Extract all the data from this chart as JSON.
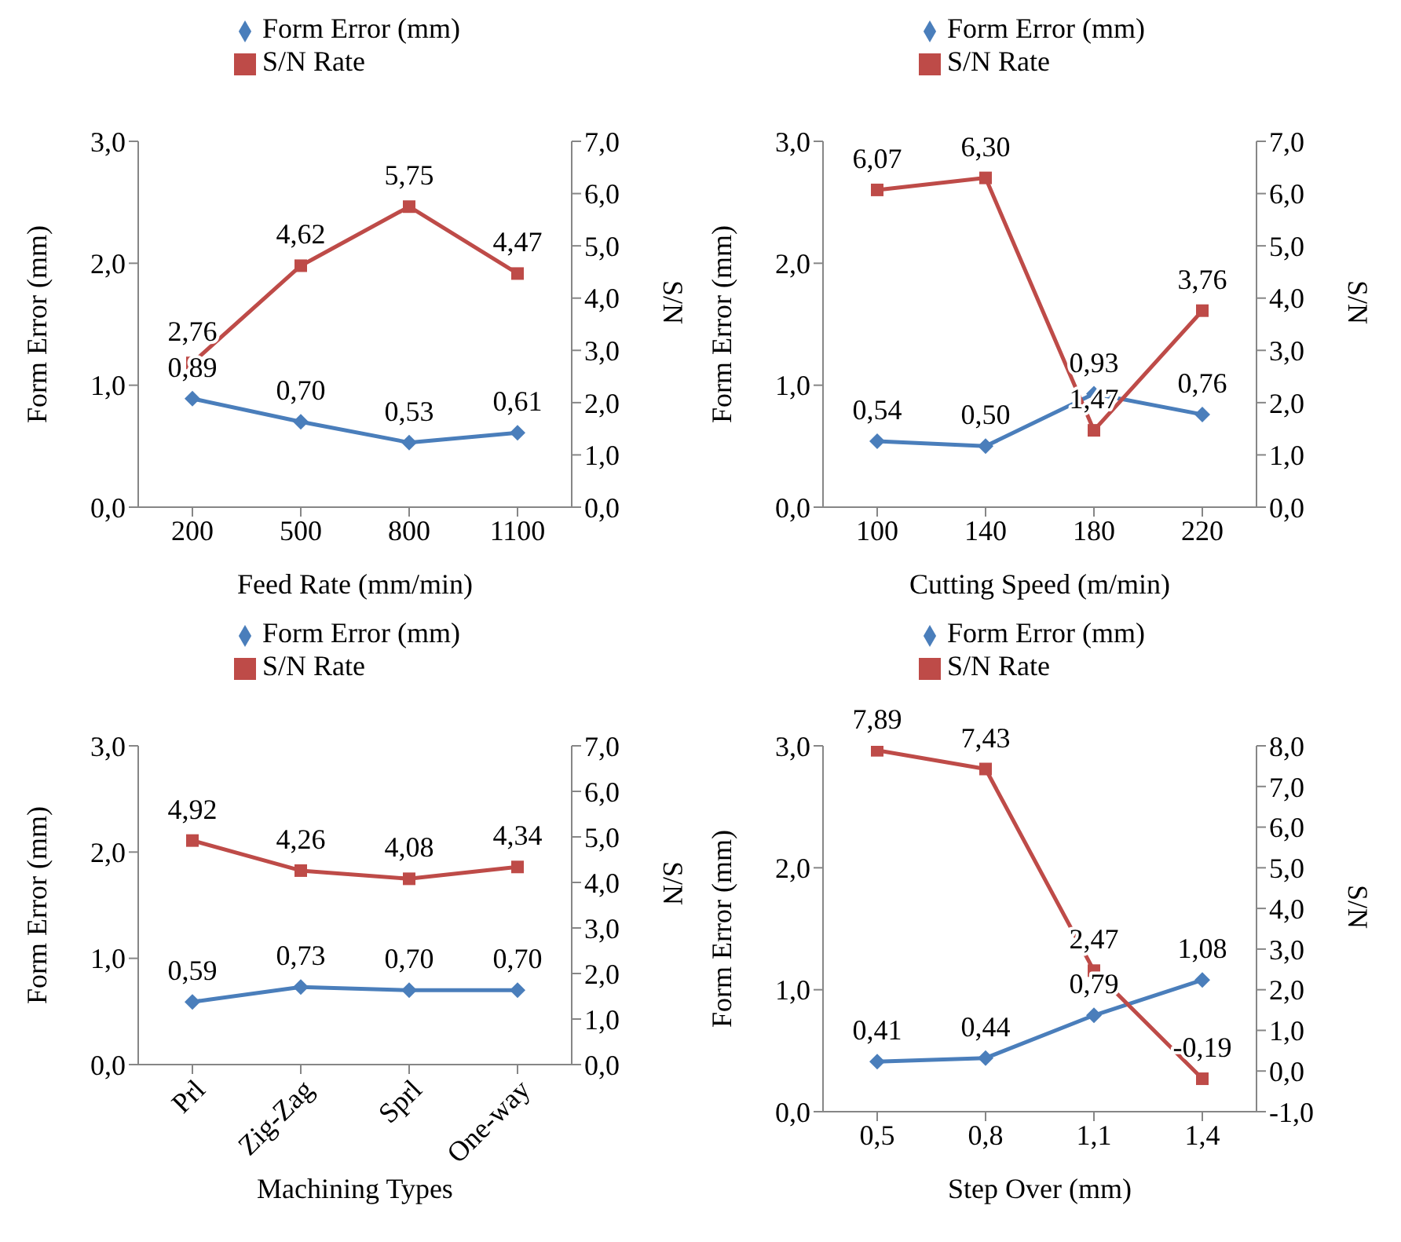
{
  "chart_data": [
    {
      "type": "line",
      "xlabel": "Feed Rate (mm/min)",
      "ylabel": "Form Error (mm)",
      "y2label": "S/N",
      "categories": [
        "200",
        "500",
        "800",
        "1100"
      ],
      "legend": "top",
      "ylim": [
        0,
        3
      ],
      "yticks": [
        {
          "value": 0,
          "label": "0,0"
        },
        {
          "value": 1,
          "label": "1,0"
        },
        {
          "value": 2,
          "label": "2,0"
        },
        {
          "value": 3,
          "label": "3,0"
        }
      ],
      "y2lim": [
        0,
        7
      ],
      "y2ticks": [
        {
          "value": 0,
          "label": "0,0"
        },
        {
          "value": 1,
          "label": "1,0"
        },
        {
          "value": 2,
          "label": "2,0"
        },
        {
          "value": 3,
          "label": "3,0"
        },
        {
          "value": 4,
          "label": "4,0"
        },
        {
          "value": 5,
          "label": "5,0"
        },
        {
          "value": 6,
          "label": "6,0"
        },
        {
          "value": 7,
          "label": "7,0"
        }
      ],
      "series": [
        {
          "name": "Form Error (mm)",
          "color": "#4a7ebb",
          "marker": "diamond",
          "values": [
            0.89,
            0.7,
            0.53,
            0.61
          ],
          "value_labels": [
            "0,89",
            "0,70",
            "0,53",
            "0,61"
          ]
        },
        {
          "name": "S/N Rate",
          "color": "#be4b48",
          "marker": "square",
          "axis": "y2",
          "values": [
            2.76,
            4.62,
            5.75,
            4.47
          ],
          "value_labels": [
            "2,76",
            "4,62",
            "5,75",
            "4,47"
          ]
        }
      ]
    },
    {
      "type": "line",
      "xlabel": "Cutting Speed (m/min)",
      "ylabel": "Form Error (mm)",
      "y2label": "S/N",
      "categories": [
        "100",
        "140",
        "180",
        "220"
      ],
      "legend": "top",
      "ylim": [
        0,
        3
      ],
      "yticks": [
        {
          "value": 0,
          "label": "0,0"
        },
        {
          "value": 1,
          "label": "1,0"
        },
        {
          "value": 2,
          "label": "2,0"
        },
        {
          "value": 3,
          "label": "3,0"
        }
      ],
      "y2lim": [
        0,
        7
      ],
      "y2ticks": [
        {
          "value": 0,
          "label": "0,0"
        },
        {
          "value": 1,
          "label": "1,0"
        },
        {
          "value": 2,
          "label": "2,0"
        },
        {
          "value": 3,
          "label": "3,0"
        },
        {
          "value": 4,
          "label": "4,0"
        },
        {
          "value": 5,
          "label": "5,0"
        },
        {
          "value": 6,
          "label": "6,0"
        },
        {
          "value": 7,
          "label": "7,0"
        }
      ],
      "series": [
        {
          "name": "Form Error (mm)",
          "color": "#4a7ebb",
          "marker": "diamond",
          "values": [
            0.54,
            0.5,
            0.93,
            0.76
          ],
          "value_labels": [
            "0,54",
            "0,50",
            "0,93",
            "0,76"
          ]
        },
        {
          "name": "S/N Rate",
          "color": "#be4b48",
          "marker": "square",
          "axis": "y2",
          "values": [
            6.07,
            6.3,
            1.47,
            3.76
          ],
          "value_labels": [
            "6,07",
            "6,30",
            "1,47",
            "3,76"
          ]
        }
      ]
    },
    {
      "type": "line",
      "xlabel": "Machining Types",
      "ylabel": "Form Error (mm)",
      "y2label": "S/N",
      "categories": [
        "Prl",
        "Zig-Zag",
        "Sprl",
        "One-way"
      ],
      "legend": "top",
      "ylim": [
        0,
        3
      ],
      "yticks": [
        {
          "value": 0,
          "label": "0,0"
        },
        {
          "value": 1,
          "label": "1,0"
        },
        {
          "value": 2,
          "label": "2,0"
        },
        {
          "value": 3,
          "label": "3,0"
        }
      ],
      "y2lim": [
        0,
        7
      ],
      "y2ticks": [
        {
          "value": 0,
          "label": "0,0"
        },
        {
          "value": 1,
          "label": "1,0"
        },
        {
          "value": 2,
          "label": "2,0"
        },
        {
          "value": 3,
          "label": "3,0"
        },
        {
          "value": 4,
          "label": "4,0"
        },
        {
          "value": 5,
          "label": "5,0"
        },
        {
          "value": 6,
          "label": "6,0"
        },
        {
          "value": 7,
          "label": "7,0"
        }
      ],
      "series": [
        {
          "name": "Form Error (mm)",
          "color": "#4a7ebb",
          "marker": "diamond",
          "values": [
            0.59,
            0.73,
            0.7,
            0.7
          ],
          "value_labels": [
            "0,59",
            "0,73",
            "0,70",
            "0,70"
          ]
        },
        {
          "name": "S/N Rate",
          "color": "#be4b48",
          "marker": "square",
          "axis": "y2",
          "values": [
            4.92,
            4.26,
            4.08,
            4.34
          ],
          "value_labels": [
            "4,92",
            "4,26",
            "4,08",
            "4,34"
          ]
        }
      ]
    },
    {
      "type": "line",
      "xlabel": "Step Over (mm)",
      "ylabel": "Form Error (mm)",
      "y2label": "S/N",
      "categories": [
        "0,5",
        "0,8",
        "1,1",
        "1,4"
      ],
      "legend": "top",
      "ylim": [
        0,
        3
      ],
      "yticks": [
        {
          "value": 0,
          "label": "0,0"
        },
        {
          "value": 1,
          "label": "1,0"
        },
        {
          "value": 2,
          "label": "2,0"
        },
        {
          "value": 3,
          "label": "3,0"
        }
      ],
      "y2lim": [
        -1,
        8
      ],
      "y2ticks": [
        {
          "value": -1,
          "label": "-1,0"
        },
        {
          "value": 0,
          "label": "0,0"
        },
        {
          "value": 1,
          "label": "1,0"
        },
        {
          "value": 2,
          "label": "2,0"
        },
        {
          "value": 3,
          "label": "3,0"
        },
        {
          "value": 4,
          "label": "4,0"
        },
        {
          "value": 5,
          "label": "5,0"
        },
        {
          "value": 6,
          "label": "6,0"
        },
        {
          "value": 7,
          "label": "7,0"
        },
        {
          "value": 8,
          "label": "8,0"
        }
      ],
      "series": [
        {
          "name": "Form Error (mm)",
          "color": "#4a7ebb",
          "marker": "diamond",
          "values": [
            0.41,
            0.44,
            0.79,
            1.08
          ],
          "value_labels": [
            "0,41",
            "0,44",
            "0,79",
            "1,08"
          ]
        },
        {
          "name": "S/N Rate",
          "color": "#be4b48",
          "marker": "square",
          "axis": "y2",
          "values": [
            7.89,
            7.43,
            2.47,
            -0.19
          ],
          "value_labels": [
            "7,89",
            "7,43",
            "2,47",
            "-0,19"
          ]
        }
      ]
    }
  ]
}
